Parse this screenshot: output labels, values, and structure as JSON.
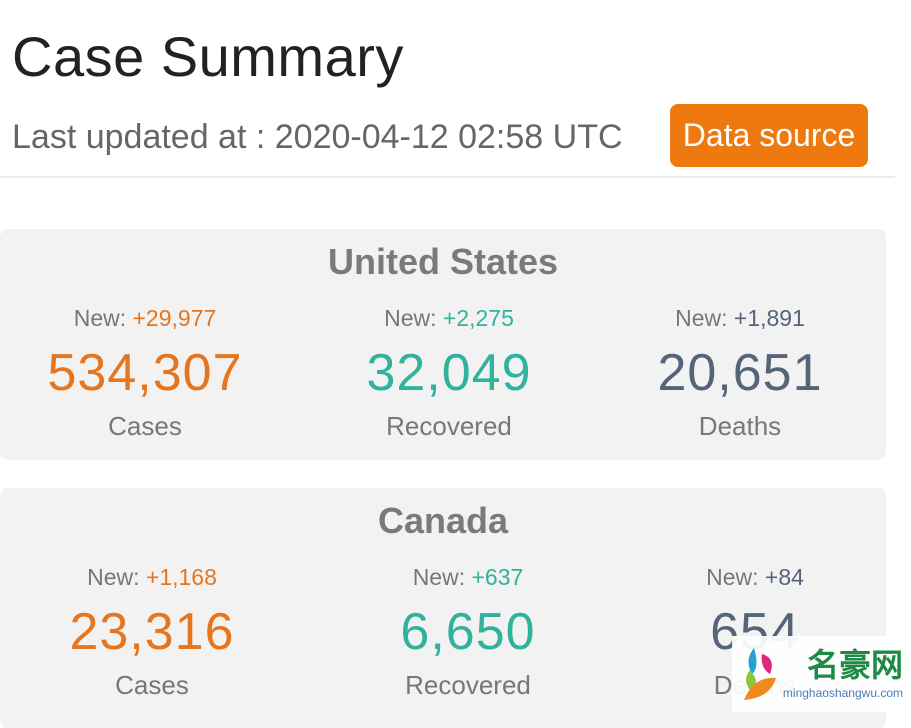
{
  "header": {
    "title": "Case Summary",
    "last_updated": "Last updated at : 2020-04-12 02:58 UTC",
    "data_source_label": "Data source"
  },
  "colors": {
    "cases": "#e5761f",
    "recovered": "#2fb39e",
    "deaths": "#566479",
    "accent": "#ee7a0f"
  },
  "new_prefix": "New: ",
  "countries": [
    {
      "name": "United States",
      "stats": [
        {
          "new": "+29,977",
          "value": "534,307",
          "label": "Cases"
        },
        {
          "new": "+2,275",
          "value": "32,049",
          "label": "Recovered"
        },
        {
          "new": "+1,891",
          "value": "20,651",
          "label": "Deaths"
        }
      ]
    },
    {
      "name": "Canada",
      "stats": [
        {
          "new": "+1,168",
          "value": "23,316",
          "label": "Cases"
        },
        {
          "new": "+637",
          "value": "6,650",
          "label": "Recovered"
        },
        {
          "new": "+84",
          "value": "654",
          "label": "Deaths"
        }
      ]
    }
  ],
  "watermark": {
    "name": "名豪网",
    "url": "minghaoshangwu.com"
  }
}
